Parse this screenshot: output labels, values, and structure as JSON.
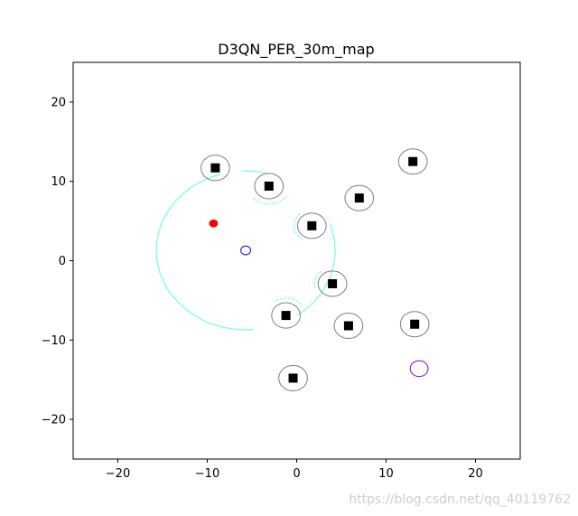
{
  "chart_data": {
    "type": "scatter",
    "title": "D3QN_PER_30m_map",
    "xlabel": "",
    "ylabel": "",
    "xlim": [
      -25,
      25
    ],
    "ylim": [
      -25,
      25
    ],
    "xticks": [
      -20,
      -10,
      0,
      10,
      20
    ],
    "yticks": [
      -20,
      -10,
      0,
      10,
      20
    ],
    "grid": false,
    "series": [
      {
        "marker": "square",
        "color": "#000000",
        "points": [
          {
            "x": -9.1,
            "y": 11.7
          },
          {
            "x": -3.1,
            "y": 9.4
          },
          {
            "x": 1.7,
            "y": 4.4
          },
          {
            "x": 7.0,
            "y": 7.9
          },
          {
            "x": 13.0,
            "y": 12.5
          },
          {
            "x": 4.0,
            "y": -2.9
          },
          {
            "x": -1.2,
            "y": -6.9
          },
          {
            "x": 5.8,
            "y": -8.2
          },
          {
            "x": 13.2,
            "y": -8.0
          },
          {
            "x": -0.4,
            "y": -14.8
          }
        ]
      },
      {
        "marker": "circle-outline",
        "color": "#808080",
        "radius": 1.6,
        "points": [
          {
            "x": -9.1,
            "y": 11.7
          },
          {
            "x": -3.1,
            "y": 9.4
          },
          {
            "x": 1.7,
            "y": 4.4
          },
          {
            "x": 7.0,
            "y": 7.9
          },
          {
            "x": 13.0,
            "y": 12.5
          },
          {
            "x": 4.0,
            "y": -2.9
          },
          {
            "x": -1.2,
            "y": -6.9
          },
          {
            "x": 5.8,
            "y": -8.2
          },
          {
            "x": 13.2,
            "y": -8.0
          },
          {
            "x": -0.4,
            "y": -14.8
          }
        ]
      },
      {
        "marker": "filled-circle",
        "color": "#ff0000",
        "radius": 0.5,
        "points": [
          {
            "x": -9.3,
            "y": 4.7
          }
        ]
      },
      {
        "marker": "circle-outline",
        "color": "#0000ff",
        "radius": 0.55,
        "points": [
          {
            "x": -5.7,
            "y": 1.3
          }
        ]
      },
      {
        "marker": "circle-outline",
        "color": "#9400d3",
        "radius": 1.0,
        "points": [
          {
            "x": 13.7,
            "y": -13.6
          }
        ]
      }
    ],
    "scan_arc": {
      "color": "#7fffd4",
      "center": {
        "x": -5.7,
        "y": 1.3
      },
      "radius": 10.0,
      "gaps": [
        [
          -85,
          -55
        ],
        [
          20,
          75
        ],
        [
          92,
          106
        ]
      ]
    },
    "occlusion_arcs": [
      {
        "center": {
          "x": -3.1,
          "y": 9.4
        },
        "r": 2.3,
        "from": 220,
        "to": 320
      },
      {
        "center": {
          "x": 1.7,
          "y": 4.4
        },
        "r": 2.0,
        "from": 130,
        "to": 240
      },
      {
        "center": {
          "x": 4.0,
          "y": -2.9
        },
        "r": 2.0,
        "from": 130,
        "to": 200
      },
      {
        "center": {
          "x": -1.2,
          "y": -6.9
        },
        "r": 2.2,
        "from": 40,
        "to": 130
      }
    ]
  },
  "watermark": "https://blog.csdn.net/qq_40119762"
}
